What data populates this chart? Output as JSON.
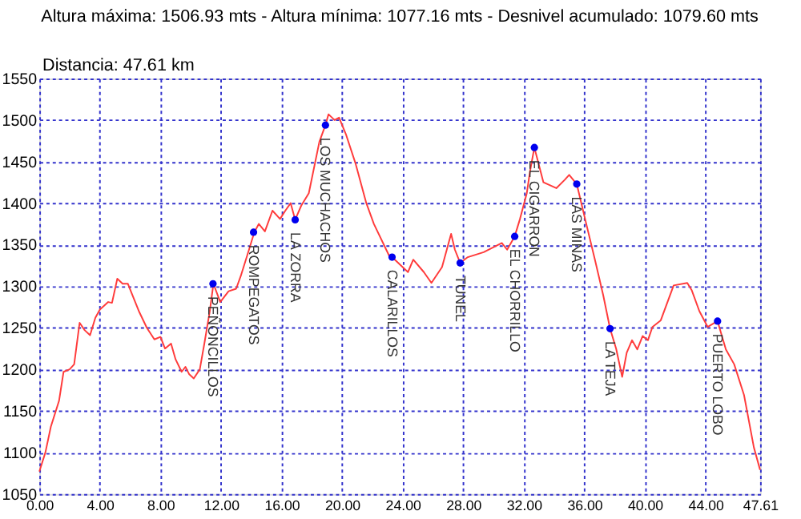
{
  "chart_data": {
    "type": "line",
    "title": "Altura máxima: 1506.93 mts - Altura mínima: 1077.16 mts - Desnivel acumulado: 1079.60 mts",
    "subtitle": "Distancia: 47.61 km",
    "xlim": [
      0,
      47.61
    ],
    "ylim": [
      1050,
      1550
    ],
    "xticks": [
      {
        "value": 0,
        "label": "0.00"
      },
      {
        "value": 4,
        "label": "4.00"
      },
      {
        "value": 8,
        "label": "8.00"
      },
      {
        "value": 12,
        "label": "12.00"
      },
      {
        "value": 16,
        "label": "16.00"
      },
      {
        "value": 20,
        "label": "20.00"
      },
      {
        "value": 24,
        "label": "24.00"
      },
      {
        "value": 28,
        "label": "28.00"
      },
      {
        "value": 32,
        "label": "32.00"
      },
      {
        "value": 36,
        "label": "36.00"
      },
      {
        "value": 40,
        "label": "40.00"
      },
      {
        "value": 44,
        "label": "44.00"
      },
      {
        "value": 47.61,
        "label": "47.61"
      }
    ],
    "yticks": [
      1050,
      1100,
      1150,
      1200,
      1250,
      1300,
      1350,
      1400,
      1450,
      1500,
      1550
    ],
    "grid": true,
    "series": [
      {
        "color": "#ff3b3b",
        "marker": "none",
        "line_style": "solid",
        "x": [
          0,
          0.4,
          0.76,
          1.3,
          1.6,
          2.0,
          2.3,
          2.66,
          3.0,
          3.35,
          3.7,
          4.0,
          4.55,
          4.8,
          5.15,
          5.5,
          5.85,
          6.2,
          6.6,
          7.1,
          7.6,
          8.0,
          8.3,
          8.7,
          9.0,
          9.4,
          9.65,
          9.9,
          10.2,
          10.6,
          10.9,
          11.25,
          11.5,
          11.95,
          12.5,
          13.0,
          13.3,
          13.85,
          14.2,
          14.5,
          14.9,
          15.4,
          15.9,
          16.25,
          16.6,
          16.9,
          17.3,
          17.8,
          18.5,
          18.9,
          19.1,
          19.5,
          19.8,
          20.25,
          20.9,
          21.6,
          22.1,
          23.1,
          23.3,
          24.35,
          24.7,
          25.4,
          25.9,
          26.6,
          27.2,
          27.45,
          27.8,
          28.3,
          29.35,
          30.55,
          30.9,
          31.4,
          31.75,
          32.2,
          32.4,
          32.7,
          33.3,
          34.15,
          34.7,
          35.0,
          35.5,
          36.05,
          36.7,
          37.25,
          37.7,
          38.1,
          38.5,
          38.8,
          39.15,
          39.5,
          39.85,
          40.2,
          40.5,
          41.05,
          41.9,
          42.8,
          43.1,
          43.6,
          44.15,
          44.8,
          45.35,
          45.9,
          46.55,
          47.2,
          47.61
        ],
        "values": [
          1077,
          1100,
          1131,
          1162,
          1197,
          1200,
          1206,
          1256,
          1247,
          1241,
          1262,
          1272,
          1281,
          1280,
          1309,
          1303,
          1303,
          1287,
          1269,
          1250,
          1236,
          1239,
          1225,
          1231,
          1212,
          1197,
          1203,
          1194,
          1189,
          1200,
          1231,
          1269,
          1303,
          1281,
          1294,
          1297,
          1312,
          1344,
          1365,
          1375,
          1366,
          1391,
          1381,
          1391,
          1400,
          1380,
          1397,
          1412,
          1474,
          1494,
          1507,
          1500,
          1503,
          1483,
          1447,
          1400,
          1375,
          1337,
          1335,
          1317,
          1332,
          1317,
          1304,
          1323,
          1363,
          1344,
          1328,
          1335,
          1341,
          1352,
          1344,
          1360,
          1381,
          1412,
          1437,
          1467,
          1425,
          1418,
          1428,
          1434,
          1423,
          1381,
          1332,
          1289,
          1249,
          1225,
          1191,
          1220,
          1235,
          1224,
          1240,
          1235,
          1251,
          1259,
          1301,
          1304,
          1295,
          1270,
          1251,
          1258,
          1224,
          1206,
          1169,
          1106,
          1079
        ]
      },
      {
        "type": "scatter",
        "color": "#0000ee",
        "marker": "circle",
        "x": [
          11.47,
          14.15,
          16.9,
          18.9,
          23.3,
          27.8,
          31.4,
          32.7,
          35.5,
          37.7,
          44.8
        ],
        "values": [
          1303,
          1365,
          1380,
          1494,
          1335,
          1328,
          1360,
          1467,
          1423,
          1249,
          1258
        ]
      }
    ],
    "annotations": [
      {
        "text": "PEÑONCILLOS",
        "x": 11.47,
        "y": 1303
      },
      {
        "text": "ROMPEGATOS",
        "x": 14.15,
        "y": 1365
      },
      {
        "text": "LA ZORRA",
        "x": 16.9,
        "y": 1380
      },
      {
        "text": "LOS MUCHACHOS",
        "x": 18.9,
        "y": 1494
      },
      {
        "text": "CALARILLOS",
        "x": 23.3,
        "y": 1335
      },
      {
        "text": "TUNEL",
        "x": 27.8,
        "y": 1328
      },
      {
        "text": "EL CHORRILLO",
        "x": 31.4,
        "y": 1360
      },
      {
        "text": "EL CIGARRON",
        "x": 32.7,
        "y": 1467
      },
      {
        "text": "LAS MINAS",
        "x": 35.5,
        "y": 1423
      },
      {
        "text": "LA TEJA",
        "x": 37.7,
        "y": 1249
      },
      {
        "text": "PUERTO LOBO",
        "x": 44.8,
        "y": 1258
      }
    ]
  }
}
